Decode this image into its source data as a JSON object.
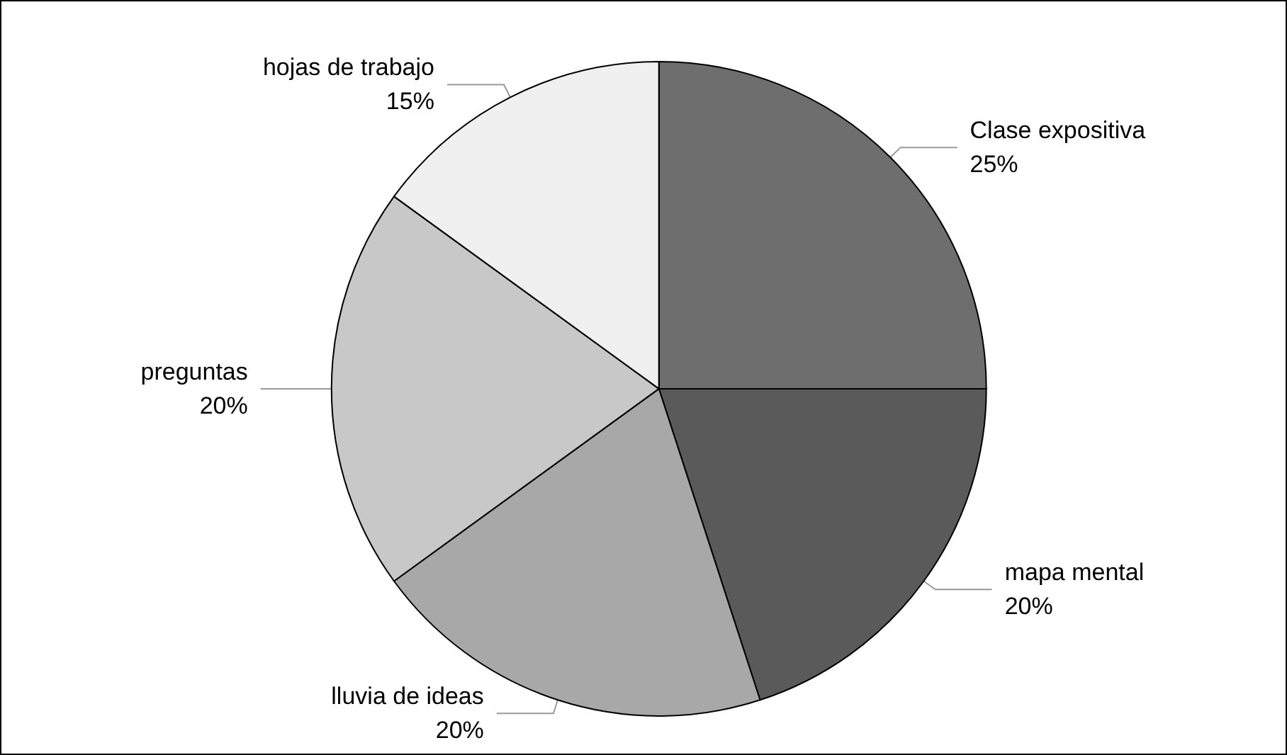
{
  "chart_data": {
    "type": "pie",
    "categories": [
      "Clase expositiva",
      "mapa mental",
      "lluvia de ideas",
      "preguntas",
      "hojas de trabajo"
    ],
    "values": [
      25,
      20,
      20,
      20,
      15
    ],
    "value_labels": [
      "25%",
      "20%",
      "20%",
      "20%",
      "15%"
    ],
    "colors": [
      "#6e6e6e",
      "#5a5a5a",
      "#a8a8a8",
      "#c8c8c8",
      "#f0f0f0"
    ],
    "legend": false
  }
}
